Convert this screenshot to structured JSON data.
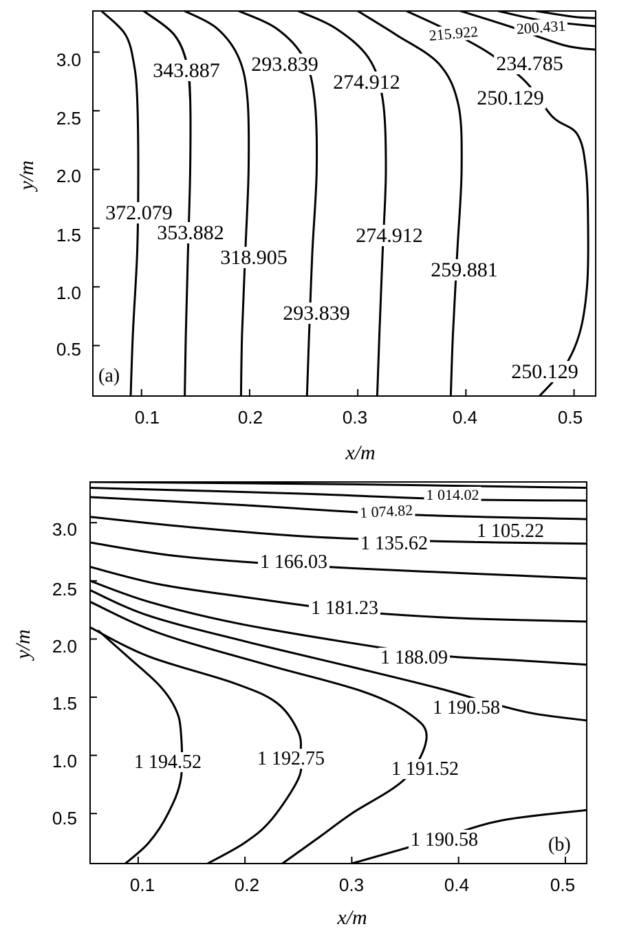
{
  "chart_data": [
    {
      "type": "contour",
      "panel_tag": "(a)",
      "xlabel": "x/m",
      "ylabel": "y/m",
      "xlim": [
        0.055,
        0.52
      ],
      "ylim": [
        0.07,
        3.35
      ],
      "xticks": [
        0.1,
        0.2,
        0.3,
        0.4,
        0.5
      ],
      "yticks": [
        0.5,
        1.0,
        1.5,
        2.0,
        2.5,
        3.0
      ],
      "xtick_labels": [
        "0.1",
        "0.2",
        "0.3",
        "0.4",
        "0.5"
      ],
      "ytick_labels": [
        "0.5",
        "1.0",
        "1.5",
        "2.0",
        "2.5",
        "3.0"
      ],
      "contours": [
        {
          "level": "372.079",
          "points": [
            [
              0.09,
              0.07
            ],
            [
              0.092,
              0.6
            ],
            [
              0.096,
              1.3
            ],
            [
              0.097,
              2.0
            ],
            [
              0.096,
              2.6
            ],
            [
              0.093,
              2.9
            ],
            [
              0.085,
              3.15
            ],
            [
              0.063,
              3.35
            ]
          ]
        },
        {
          "level": "353.882",
          "points": [
            [
              0.14,
              0.07
            ],
            [
              0.141,
              0.6
            ],
            [
              0.143,
              1.3
            ],
            [
              0.145,
              2.0
            ],
            [
              0.145,
              2.6
            ],
            [
              0.142,
              2.9
            ],
            [
              0.13,
              3.15
            ],
            [
              0.102,
              3.35
            ]
          ]
        },
        {
          "level": "343.887",
          "points": [
            [
              0.145,
              2.6
            ],
            [
              0.142,
              2.9
            ],
            [
              0.13,
              3.15
            ],
            [
              0.102,
              3.35
            ]
          ]
        },
        {
          "level": "318.905",
          "points": [
            [
              0.192,
              0.07
            ],
            [
              0.193,
              0.6
            ],
            [
              0.196,
              1.3
            ],
            [
              0.199,
              2.0
            ],
            [
              0.198,
              2.6
            ],
            [
              0.19,
              2.95
            ],
            [
              0.17,
              3.2
            ],
            [
              0.14,
              3.35
            ]
          ]
        },
        {
          "level": "293.839",
          "points": [
            [
              0.253,
              0.07
            ],
            [
              0.255,
              0.6
            ],
            [
              0.258,
              1.3
            ],
            [
              0.262,
              2.0
            ],
            [
              0.26,
              2.6
            ],
            [
              0.25,
              2.95
            ],
            [
              0.225,
              3.2
            ],
            [
              0.19,
              3.35
            ]
          ]
        },
        {
          "level": "274.912",
          "points": [
            [
              0.318,
              0.07
            ],
            [
              0.32,
              0.6
            ],
            [
              0.323,
              1.3
            ],
            [
              0.326,
              2.0
            ],
            [
              0.323,
              2.6
            ],
            [
              0.31,
              2.95
            ],
            [
              0.28,
              3.2
            ],
            [
              0.245,
              3.35
            ]
          ]
        },
        {
          "level": "259.881",
          "points": [
            [
              0.386,
              0.07
            ],
            [
              0.388,
              0.6
            ],
            [
              0.392,
              1.3
            ],
            [
              0.396,
              2.0
            ],
            [
              0.393,
              2.55
            ],
            [
              0.375,
              2.9
            ],
            [
              0.335,
              3.15
            ],
            [
              0.3,
              3.35
            ]
          ]
        },
        {
          "level": "250.129",
          "points": [
            [
              0.468,
              0.07
            ],
            [
              0.49,
              0.3
            ],
            [
              0.505,
              0.6
            ],
            [
              0.512,
              1.0
            ],
            [
              0.513,
              1.5
            ],
            [
              0.511,
              2.0
            ],
            [
              0.503,
              2.3
            ],
            [
              0.48,
              2.45
            ],
            [
              0.455,
              2.75
            ],
            [
              0.42,
              3.0
            ],
            [
              0.38,
              3.2
            ],
            [
              0.345,
              3.35
            ]
          ]
        },
        {
          "level": "234.785",
          "points": [
            [
              0.395,
              3.35
            ],
            [
              0.44,
              3.22
            ],
            [
              0.49,
              3.06
            ],
            [
              0.52,
              3.02
            ]
          ]
        },
        {
          "level": "215.922",
          "points": [
            [
              0.43,
              3.35
            ],
            [
              0.47,
              3.27
            ],
            [
              0.52,
              3.22
            ]
          ]
        },
        {
          "level": "200.431",
          "points": [
            [
              0.465,
              3.35
            ],
            [
              0.5,
              3.3
            ],
            [
              0.52,
              3.29
            ]
          ]
        }
      ]
    },
    {
      "type": "contour",
      "panel_tag": "(b)",
      "xlabel": "x/m",
      "ylabel": "y/m",
      "xlim": [
        0.055,
        0.52
      ],
      "ylim": [
        0.07,
        3.35
      ],
      "xticks": [
        0.1,
        0.2,
        0.3,
        0.4,
        0.5
      ],
      "yticks": [
        0.5,
        1.0,
        1.5,
        2.0,
        2.5,
        3.0
      ],
      "xtick_labels": [
        "0.1",
        "0.2",
        "0.3",
        "0.4",
        "0.5"
      ],
      "ytick_labels": [
        "0.5",
        "1.0",
        "1.5",
        "2.0",
        "2.5",
        "3.0"
      ],
      "contours": [
        {
          "level": "1 014.02",
          "points": [
            [
              0.055,
              3.35
            ],
            [
              0.3,
              3.33
            ],
            [
              0.52,
              3.3
            ]
          ]
        },
        {
          "level": "1 074.82",
          "points": [
            [
              0.055,
              3.3
            ],
            [
              0.25,
              3.25
            ],
            [
              0.4,
              3.2
            ],
            [
              0.52,
              3.19
            ]
          ]
        },
        {
          "level": "1 105.22",
          "points": [
            [
              0.055,
              3.22
            ],
            [
              0.2,
              3.15
            ],
            [
              0.35,
              3.07
            ],
            [
              0.52,
              3.03
            ]
          ]
        },
        {
          "level": "1 135.62",
          "points": [
            [
              0.055,
              3.05
            ],
            [
              0.15,
              2.96
            ],
            [
              0.26,
              2.88
            ],
            [
              0.38,
              2.84
            ],
            [
              0.52,
              2.82
            ]
          ]
        },
        {
          "level": "1 166.03",
          "points": [
            [
              0.055,
              2.83
            ],
            [
              0.13,
              2.72
            ],
            [
              0.22,
              2.65
            ],
            [
              0.32,
              2.6
            ],
            [
              0.42,
              2.56
            ],
            [
              0.52,
              2.52
            ]
          ]
        },
        {
          "level": "1 181.23",
          "points": [
            [
              0.055,
              2.62
            ],
            [
              0.12,
              2.47
            ],
            [
              0.2,
              2.36
            ],
            [
              0.3,
              2.24
            ],
            [
              0.4,
              2.18
            ],
            [
              0.52,
              2.15
            ]
          ]
        },
        {
          "level": "1 188.09",
          "points": [
            [
              0.055,
              2.5
            ],
            [
              0.11,
              2.32
            ],
            [
              0.19,
              2.14
            ],
            [
              0.29,
              1.98
            ],
            [
              0.38,
              1.86
            ],
            [
              0.45,
              1.82
            ],
            [
              0.52,
              1.78
            ]
          ]
        },
        {
          "level": "1 190.58",
          "points": [
            [
              0.055,
              2.42
            ],
            [
              0.11,
              2.2
            ],
            [
              0.2,
              1.98
            ],
            [
              0.3,
              1.76
            ],
            [
              0.38,
              1.58
            ],
            [
              0.43,
              1.45
            ],
            [
              0.47,
              1.36
            ],
            [
              0.52,
              1.3
            ]
          ]
        },
        {
          "level": "1 191.52",
          "points": [
            [
              0.055,
              2.32
            ],
            [
              0.12,
              2.05
            ],
            [
              0.22,
              1.78
            ],
            [
              0.31,
              1.55
            ],
            [
              0.355,
              1.35
            ],
            [
              0.37,
              1.15
            ],
            [
              0.35,
              0.8
            ],
            [
              0.3,
              0.5
            ],
            [
              0.27,
              0.3
            ],
            [
              0.235,
              0.07
            ]
          ]
        },
        {
          "level": "1 192.75",
          "points": [
            [
              0.055,
              2.1
            ],
            [
              0.11,
              1.85
            ],
            [
              0.19,
              1.62
            ],
            [
              0.23,
              1.45
            ],
            [
              0.25,
              1.2
            ],
            [
              0.252,
              1.0
            ],
            [
              0.25,
              0.8
            ],
            [
              0.225,
              0.45
            ],
            [
              0.2,
              0.25
            ],
            [
              0.165,
              0.07
            ]
          ]
        },
        {
          "level": "1 194.52",
          "points": [
            [
              0.063,
              2.07
            ],
            [
              0.09,
              1.85
            ],
            [
              0.12,
              1.6
            ],
            [
              0.135,
              1.4
            ],
            [
              0.14,
              1.2
            ],
            [
              0.14,
              0.8
            ],
            [
              0.128,
              0.5
            ],
            [
              0.11,
              0.25
            ],
            [
              0.088,
              0.07
            ]
          ]
        },
        {
          "level": "1 190.58",
          "points": [
            [
              0.3,
              0.07
            ],
            [
              0.38,
              0.28
            ],
            [
              0.44,
              0.44
            ],
            [
              0.52,
              0.53
            ]
          ]
        }
      ]
    }
  ],
  "contour_label_text": {
    "a": [
      "215.922",
      "200.431",
      "343.887",
      "293.839",
      "274.912",
      "234.785",
      "250.129",
      "372.079",
      "353.882",
      "274.912",
      "318.905",
      "259.881",
      "293.839",
      "250.129"
    ],
    "b": [
      "1 014.02",
      "1 074.82",
      "1 105.22",
      "1 135.62",
      "1 166.03",
      "1 181.23",
      "1 188.09",
      "1 190.58",
      "1 194.52",
      "1 192.75",
      "1 191.52",
      "1 190.58"
    ]
  }
}
